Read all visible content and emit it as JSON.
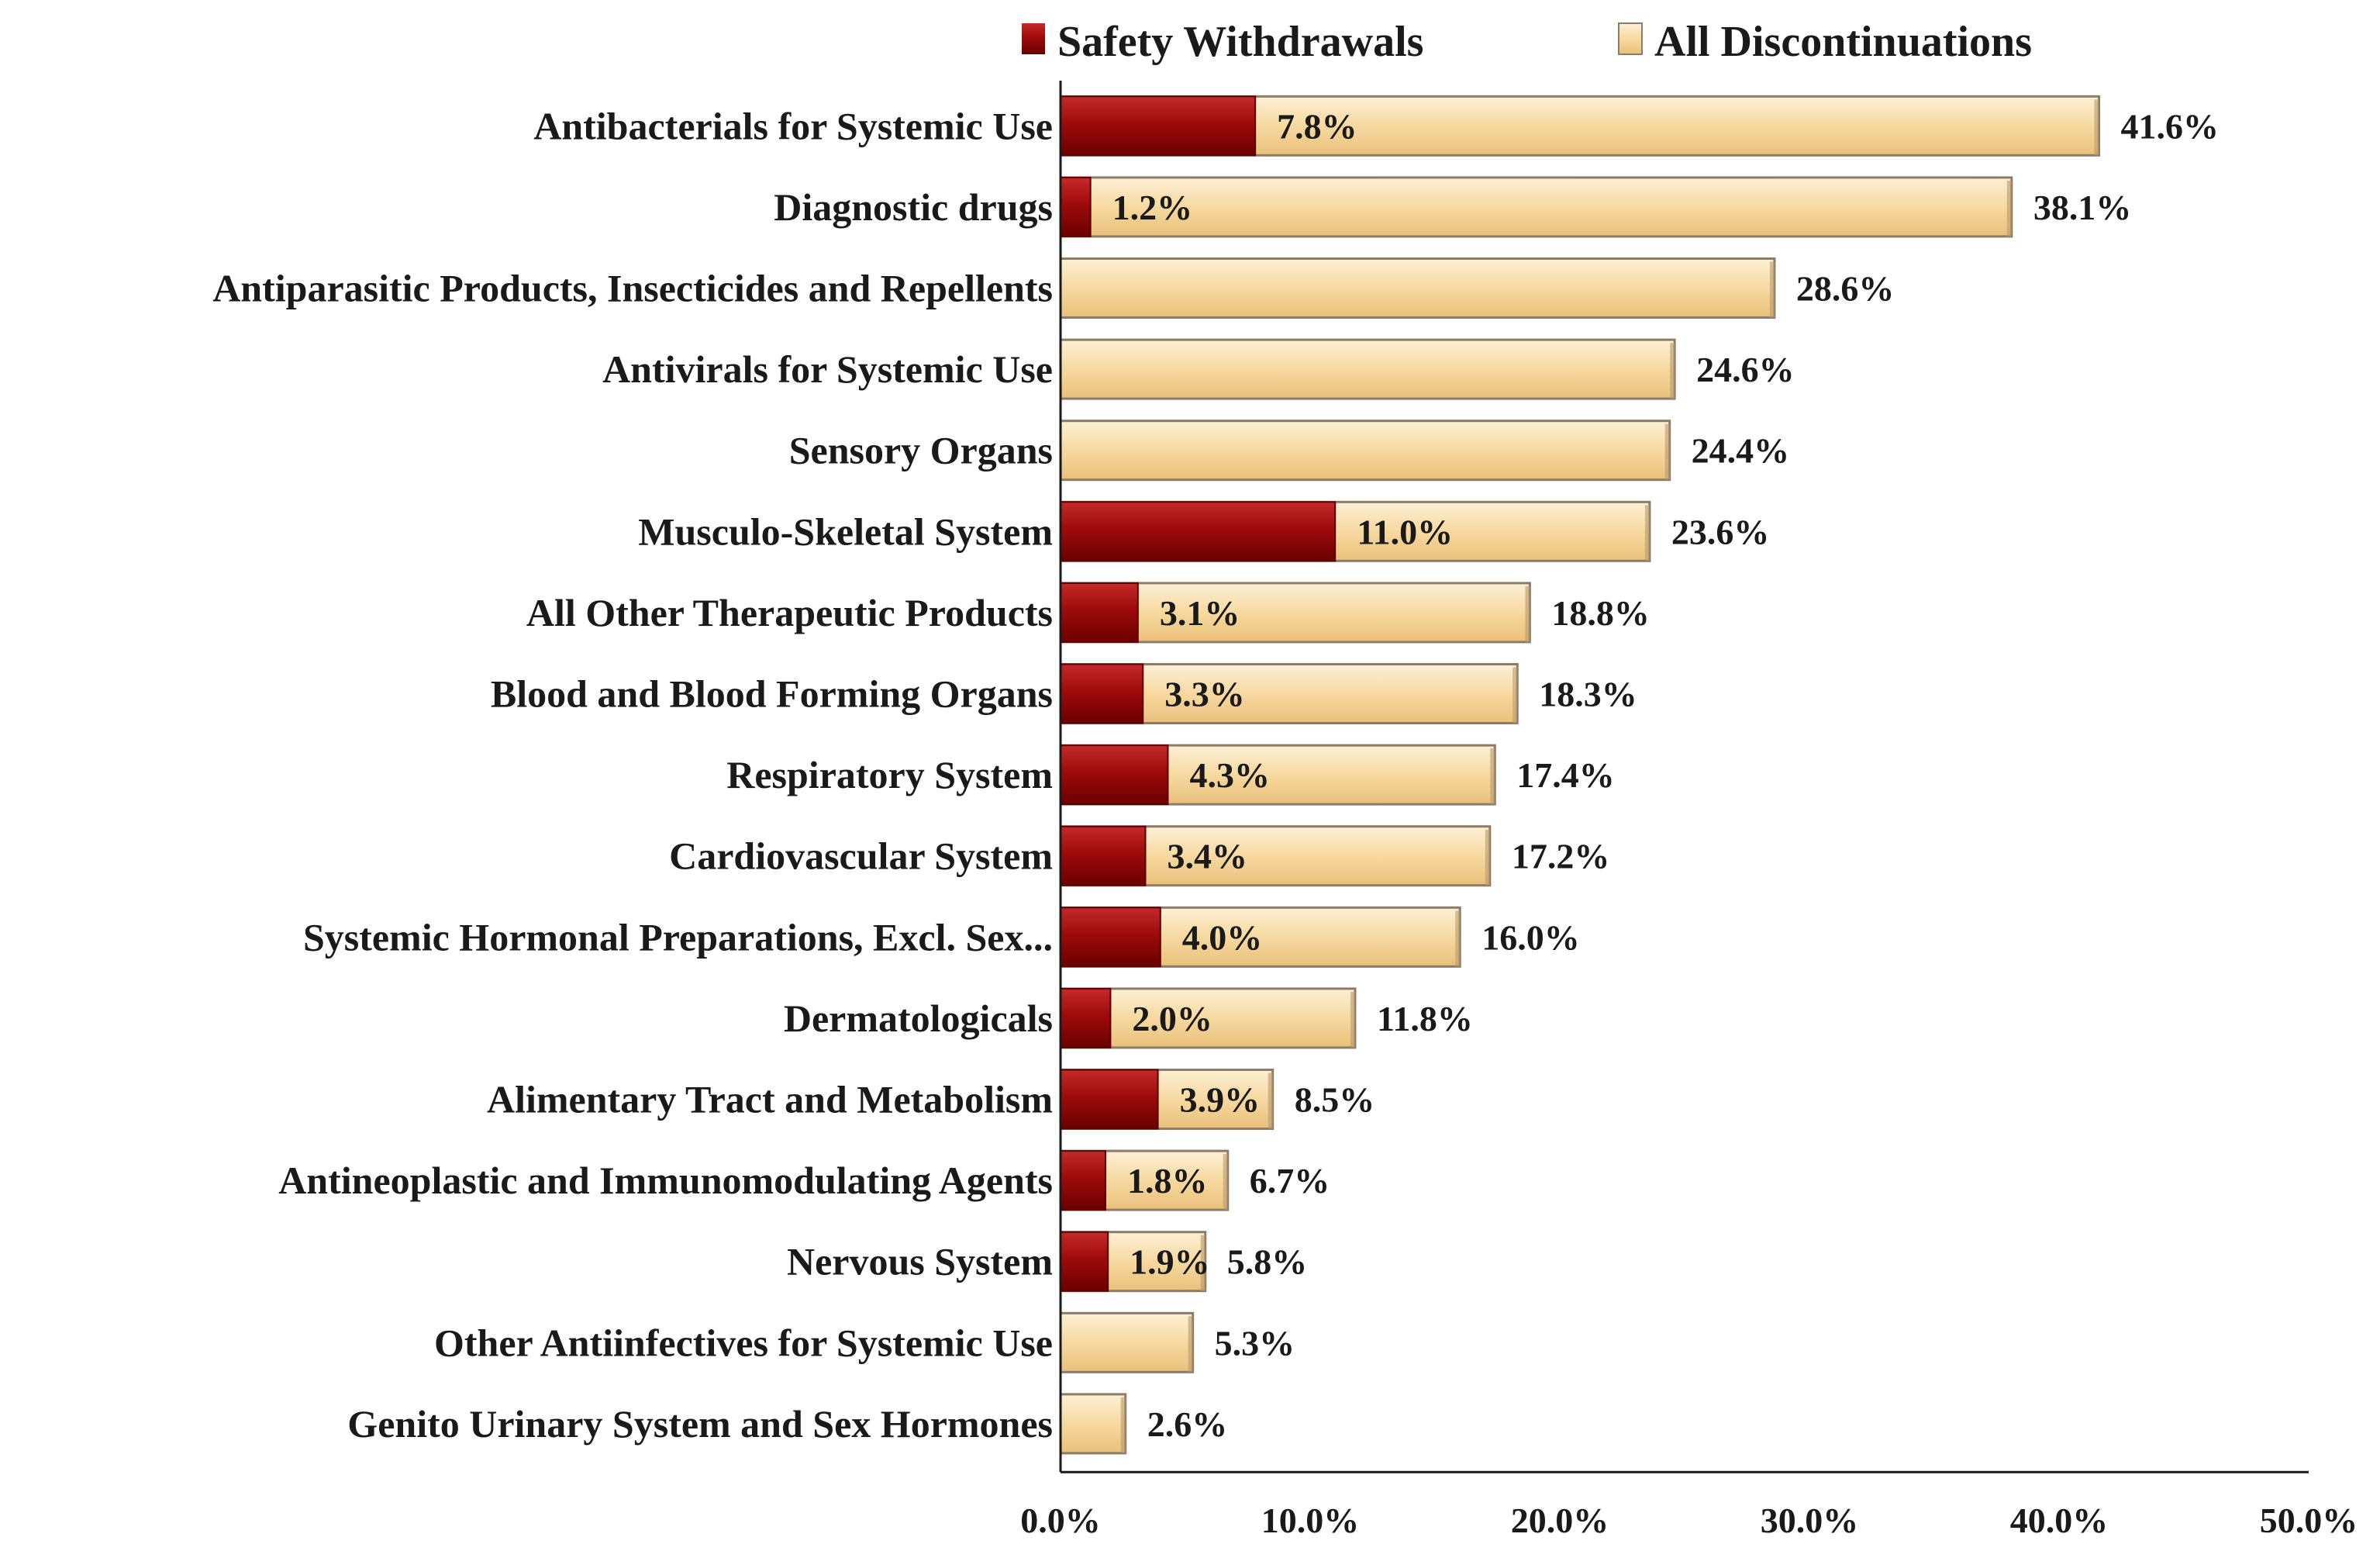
{
  "colors": {
    "safety": "#9e0b0b",
    "safety_dark": "#5e0000",
    "all": "#f7d9a0",
    "all_light": "#fdf0d6",
    "all_edge": "#8c7b66",
    "axis": "#1a1a1a"
  },
  "chart_data": {
    "type": "bar",
    "orientation": "horizontal",
    "title": "",
    "xlabel": "",
    "ylabel": "",
    "xlim": [
      0,
      50
    ],
    "xticks": [
      0,
      10,
      20,
      30,
      40,
      50
    ],
    "xtick_labels": [
      "0.0%",
      "10.0%",
      "20.0%",
      "30.0%",
      "40.0%",
      "50.0%"
    ],
    "legend_position": "top",
    "grid": false,
    "categories": [
      "Antibacterials for Systemic Use",
      "Diagnostic drugs",
      "Antiparasitic Products, Insecticides and Repellents",
      "Antivirals for Systemic Use",
      "Sensory Organs",
      "Musculo-Skeletal System",
      "All Other Therapeutic Products",
      "Blood and Blood Forming Organs",
      "Respiratory System",
      "Cardiovascular System",
      "Systemic Hormonal Preparations, Excl. Sex...",
      "Dermatologicals",
      "Alimentary Tract and Metabolism",
      "Antineoplastic and Immunomodulating Agents",
      "Nervous System",
      "Other Antiinfectives for Systemic Use",
      "Genito Urinary System and Sex Hormones"
    ],
    "series": [
      {
        "name": "All Discontinuations",
        "values": [
          41.6,
          38.1,
          28.6,
          24.6,
          24.4,
          23.6,
          18.8,
          18.3,
          17.4,
          17.2,
          16.0,
          11.8,
          8.5,
          6.7,
          5.8,
          5.3,
          2.6
        ],
        "labels": [
          "41.6%",
          "38.1%",
          "28.6%",
          "24.6%",
          "24.4%",
          "23.6%",
          "18.8%",
          "18.3%",
          "17.4%",
          "17.2%",
          "16.0%",
          "11.8%",
          "8.5%",
          "6.7%",
          "5.8%",
          "5.3%",
          "2.6%"
        ]
      },
      {
        "name": "Safety Withdrawals",
        "values": [
          7.8,
          1.2,
          null,
          null,
          null,
          11.0,
          3.1,
          3.3,
          4.3,
          3.4,
          4.0,
          2.0,
          3.9,
          1.8,
          1.9,
          null,
          null
        ],
        "labels": [
          "7.8%",
          "1.2%",
          null,
          null,
          null,
          "11.0%",
          "3.1%",
          "3.3%",
          "4.3%",
          "3.4%",
          "4.0%",
          "2.0%",
          "3.9%",
          "1.8%",
          "1.9%",
          null,
          null
        ]
      }
    ],
    "legend": [
      "Safety Withdrawals",
      "All Discontinuations"
    ]
  }
}
